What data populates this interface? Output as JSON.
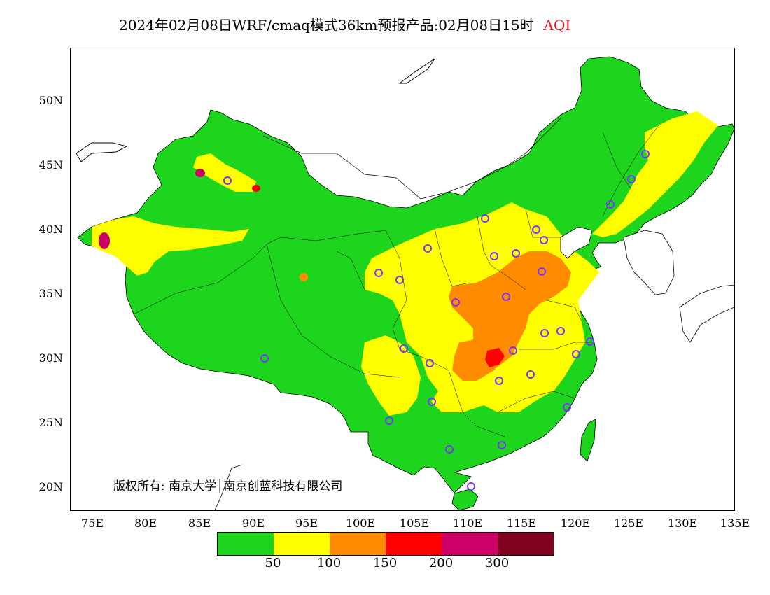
{
  "title": {
    "text": "2024年02月08日WRF/cmaq模式36km预报产品:02月08日15时",
    "variable": "AQI",
    "variable_color": "#e8141b"
  },
  "axes": {
    "lat_labels": [
      "50N",
      "45N",
      "40N",
      "35N",
      "30N",
      "25N",
      "20N"
    ],
    "lon_labels": [
      "75E",
      "80E",
      "85E",
      "90E",
      "95E",
      "100E",
      "105E",
      "110E",
      "115E",
      "120E",
      "125E",
      "130E",
      "135E"
    ]
  },
  "copyright": "版权所有: 南京大学│南京创蓝科技有限公司",
  "legend": {
    "colors": [
      "#1ed51e",
      "#ffff00",
      "#ff8c00",
      "#ff0000",
      "#cc0066",
      "#800020"
    ],
    "labels": [
      "50",
      "100",
      "150",
      "200",
      "300"
    ]
  },
  "colors": {
    "good": "#1ed51e",
    "moderate": "#ffff00",
    "unhealthy_sensitive": "#ff8c00",
    "unhealthy": "#ff0000",
    "very_unhealthy": "#cc0066",
    "hazardous": "#800020",
    "city_marker": "#7a36ff"
  }
}
